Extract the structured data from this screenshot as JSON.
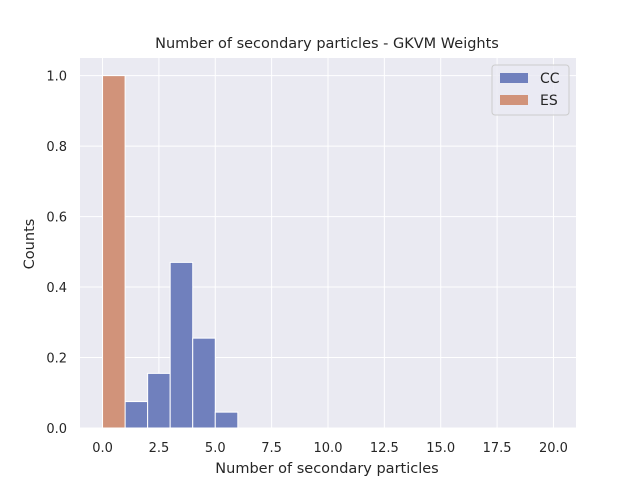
{
  "chart_data": {
    "type": "bar",
    "title": "Number of secondary particles - GKVM Weights",
    "xlabel": "Number of secondary particles",
    "ylabel": "Counts",
    "xlim": [
      -1,
      21
    ],
    "ylim": [
      0,
      1.05
    ],
    "xticks": [
      0,
      2.5,
      5,
      7.5,
      10,
      12.5,
      15,
      17.5,
      20
    ],
    "xtick_labels": [
      "0.0",
      "2.5",
      "5.0",
      "7.5",
      "10.0",
      "12.5",
      "15.0",
      "17.5",
      "20.0"
    ],
    "yticks": [
      0,
      0.2,
      0.4,
      0.6,
      0.8,
      1.0
    ],
    "ytick_labels": [
      "0.0",
      "0.2",
      "0.4",
      "0.6",
      "0.8",
      "1.0"
    ],
    "grid": true,
    "legend_position": "top-right",
    "series": [
      {
        "name": "CC",
        "color": "#7080bd",
        "bins": [
          {
            "x0": 1,
            "x1": 2,
            "value": 0.075
          },
          {
            "x0": 2,
            "x1": 3,
            "value": 0.155
          },
          {
            "x0": 3,
            "x1": 4,
            "value": 0.47
          },
          {
            "x0": 4,
            "x1": 5,
            "value": 0.255
          },
          {
            "x0": 5,
            "x1": 6,
            "value": 0.045
          }
        ]
      },
      {
        "name": "ES",
        "color": "#d1937a",
        "bins": [
          {
            "x0": 0,
            "x1": 1,
            "value": 1.0
          }
        ]
      }
    ]
  },
  "colors": {
    "axes_background": "#eaeaf2",
    "grid": "#ffffff"
  }
}
